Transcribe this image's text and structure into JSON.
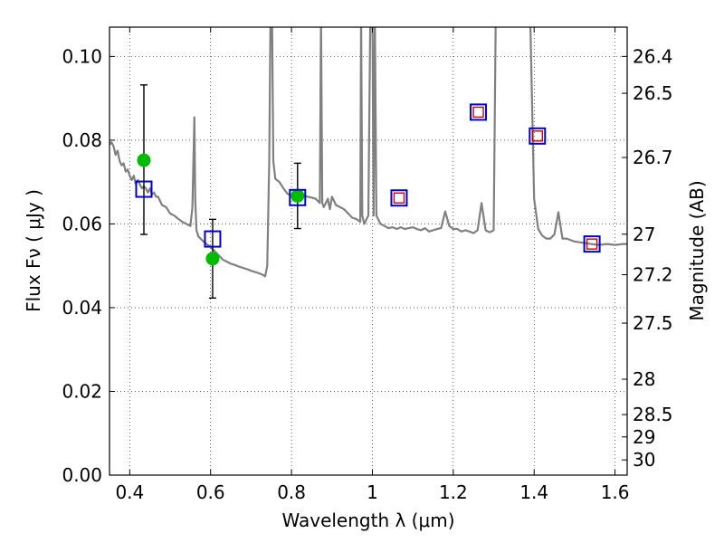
{
  "chart_data": {
    "type": "line",
    "xlabel": "Wavelength  λ (μm)",
    "ylabel": "Flux  Fν  ( μJy )",
    "ylabel_right": "Magnitude (AB)",
    "xlim": [
      0.35,
      1.63
    ],
    "ylim": [
      0.0,
      0.107
    ],
    "grid": true,
    "x_ticks": [
      0.4,
      0.6,
      0.8,
      1.0,
      1.2,
      1.4,
      1.6
    ],
    "x_tick_labels": [
      "0.4",
      "0.6",
      "0.8",
      "1",
      "1.2",
      "1.4",
      "1.6"
    ],
    "y_ticks": [
      0.0,
      0.02,
      0.04,
      0.06,
      0.08,
      0.1
    ],
    "y_tick_labels": [
      "0.00",
      "0.02",
      "0.04",
      "0.06",
      "0.08",
      "0.10"
    ],
    "mag_ticks": [
      26.4,
      26.5,
      26.7,
      27,
      27.2,
      27.5,
      28,
      28.5,
      29,
      30
    ],
    "mag_tick_labels": [
      "26.4",
      "26.5",
      "26.7",
      "27",
      "27.2",
      "27.5",
      "28",
      "28.5",
      "29",
      "30"
    ],
    "colors": {
      "model": "#808080",
      "observed": "#00bb00",
      "model_photometry": "#0000cc",
      "predicted": "#cc0000",
      "errorbar": "#000000"
    },
    "series": [
      {
        "kind": "model-spectrum",
        "x": [
          0.35,
          0.355,
          0.36,
          0.365,
          0.37,
          0.375,
          0.38,
          0.385,
          0.39,
          0.395,
          0.4,
          0.405,
          0.41,
          0.415,
          0.42,
          0.425,
          0.43,
          0.435,
          0.44,
          0.445,
          0.45,
          0.455,
          0.46,
          0.465,
          0.47,
          0.48,
          0.49,
          0.5,
          0.51,
          0.52,
          0.53,
          0.54,
          0.55,
          0.555,
          0.56,
          0.562,
          0.565,
          0.57,
          0.58,
          0.59,
          0.6,
          0.61,
          0.62,
          0.63,
          0.64,
          0.65,
          0.66,
          0.67,
          0.68,
          0.69,
          0.7,
          0.71,
          0.72,
          0.73,
          0.735,
          0.74,
          0.745,
          0.748,
          0.752,
          0.755,
          0.76,
          0.77,
          0.78,
          0.79,
          0.8,
          0.81,
          0.82,
          0.83,
          0.84,
          0.85,
          0.86,
          0.87,
          0.873,
          0.876,
          0.88,
          0.89,
          0.895,
          0.9,
          0.91,
          0.92,
          0.93,
          0.94,
          0.95,
          0.96,
          0.97,
          0.972,
          0.975,
          0.98,
          0.99,
          0.995,
          1.0,
          1.003,
          1.006,
          1.01,
          1.02,
          1.03,
          1.04,
          1.05,
          1.06,
          1.07,
          1.08,
          1.09,
          1.1,
          1.11,
          1.12,
          1.13,
          1.14,
          1.15,
          1.16,
          1.17,
          1.18,
          1.19,
          1.2,
          1.21,
          1.22,
          1.23,
          1.24,
          1.25,
          1.26,
          1.27,
          1.28,
          1.29,
          1.3,
          1.305,
          1.31,
          1.33,
          1.35,
          1.36,
          1.37,
          1.38,
          1.39,
          1.4,
          1.41,
          1.42,
          1.43,
          1.44,
          1.45,
          1.46,
          1.47,
          1.48,
          1.5,
          1.52,
          1.54,
          1.56,
          1.58,
          1.6,
          1.62,
          1.63
        ],
        "y": [
          0.079,
          0.0795,
          0.0785,
          0.0765,
          0.0775,
          0.075,
          0.074,
          0.0745,
          0.0725,
          0.073,
          0.0715,
          0.0705,
          0.0715,
          0.0695,
          0.0705,
          0.0695,
          0.0685,
          0.069,
          0.0685,
          0.0675,
          0.0685,
          0.067,
          0.0675,
          0.0665,
          0.0665,
          0.0645,
          0.064,
          0.0625,
          0.062,
          0.0612,
          0.0605,
          0.06,
          0.0595,
          0.064,
          0.0855,
          0.066,
          0.0585,
          0.057,
          0.056,
          0.0552,
          0.0545,
          0.0535,
          0.0525,
          0.0515,
          0.051,
          0.0505,
          0.0502,
          0.0498,
          0.0495,
          0.0492,
          0.0488,
          0.0485,
          0.0482,
          0.0478,
          0.0475,
          0.05,
          0.075,
          0.11,
          0.11,
          0.075,
          0.0708,
          0.07,
          0.0685,
          0.0672,
          0.0668,
          0.0668,
          0.0665,
          0.0668,
          0.0665,
          0.0663,
          0.066,
          0.065,
          0.11,
          0.065,
          0.064,
          0.066,
          0.0635,
          0.0665,
          0.0645,
          0.064,
          0.0635,
          0.0625,
          0.0615,
          0.0612,
          0.0605,
          0.11,
          0.062,
          0.06,
          0.062,
          0.11,
          0.11,
          0.062,
          0.11,
          0.062,
          0.06,
          0.0595,
          0.059,
          0.0592,
          0.0588,
          0.0592,
          0.0588,
          0.059,
          0.0592,
          0.0588,
          0.0585,
          0.059,
          0.0582,
          0.0585,
          0.0588,
          0.059,
          0.063,
          0.0595,
          0.0588,
          0.0588,
          0.0582,
          0.0585,
          0.0582,
          0.0578,
          0.0585,
          0.065,
          0.0585,
          0.058,
          0.0585,
          0.11,
          0.11,
          0.11,
          0.11,
          0.11,
          0.11,
          0.11,
          0.11,
          0.066,
          0.0588,
          0.0572,
          0.0565,
          0.0565,
          0.0575,
          0.0628,
          0.0565,
          0.0565,
          0.0558,
          0.0555,
          0.0552,
          0.055,
          0.0552,
          0.055,
          0.0552,
          0.0552
        ]
      },
      {
        "kind": "observed-photometry",
        "marker": "circle",
        "points": [
          {
            "x": 0.435,
            "y": 0.0752,
            "yerr_low": 0.0575,
            "yerr_high": 0.0932
          },
          {
            "x": 0.605,
            "y": 0.0517,
            "yerr_low": 0.0423,
            "yerr_high": 0.0611
          },
          {
            "x": 0.815,
            "y": 0.0667,
            "yerr_low": 0.0589,
            "yerr_high": 0.0745
          }
        ]
      },
      {
        "kind": "model-photometry",
        "marker": "square",
        "points": [
          {
            "x": 0.435,
            "y": 0.0683
          },
          {
            "x": 0.605,
            "y": 0.0564
          },
          {
            "x": 0.815,
            "y": 0.0663
          },
          {
            "x": 1.066,
            "y": 0.0662
          },
          {
            "x": 1.262,
            "y": 0.0867
          },
          {
            "x": 1.408,
            "y": 0.081
          },
          {
            "x": 1.543,
            "y": 0.0552
          }
        ]
      },
      {
        "kind": "predicted-photometry",
        "marker": "small-square",
        "points": [
          {
            "x": 1.066,
            "y": 0.0662
          },
          {
            "x": 1.262,
            "y": 0.0867
          },
          {
            "x": 1.408,
            "y": 0.081
          },
          {
            "x": 1.543,
            "y": 0.0552
          }
        ]
      }
    ]
  }
}
